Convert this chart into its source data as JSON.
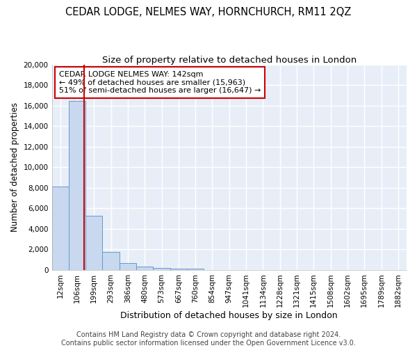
{
  "title": "CEDAR LODGE, NELMES WAY, HORNCHURCH, RM11 2QZ",
  "subtitle": "Size of property relative to detached houses in London",
  "xlabel": "Distribution of detached houses by size in London",
  "ylabel": "Number of detached properties",
  "bar_labels": [
    "12sqm",
    "106sqm",
    "199sqm",
    "293sqm",
    "386sqm",
    "480sqm",
    "573sqm",
    "667sqm",
    "760sqm",
    "854sqm",
    "947sqm",
    "1041sqm",
    "1134sqm",
    "1228sqm",
    "1321sqm",
    "1415sqm",
    "1508sqm",
    "1602sqm",
    "1695sqm",
    "1789sqm",
    "1882sqm"
  ],
  "bar_values": [
    8100,
    16500,
    5300,
    1750,
    700,
    320,
    200,
    150,
    100,
    0,
    0,
    0,
    0,
    0,
    0,
    0,
    0,
    0,
    0,
    0,
    0
  ],
  "bar_color": "#c8d8ef",
  "bar_edge_color": "#6699cc",
  "vline_color": "#cc0000",
  "vline_x": 1.43,
  "annotation_text": "CEDAR LODGE NELMES WAY: 142sqm\n← 49% of detached houses are smaller (15,963)\n51% of semi-detached houses are larger (16,647) →",
  "annotation_box_color": "#ffffff",
  "annotation_box_edge": "#cc0000",
  "ylim": [
    0,
    20000
  ],
  "yticks": [
    0,
    2000,
    4000,
    6000,
    8000,
    10000,
    12000,
    14000,
    16000,
    18000,
    20000
  ],
  "footnote": "Contains HM Land Registry data © Crown copyright and database right 2024.\nContains public sector information licensed under the Open Government Licence v3.0.",
  "bg_color": "#ffffff",
  "plot_bg_color": "#e8eef8",
  "grid_color": "#ffffff",
  "title_fontsize": 10.5,
  "subtitle_fontsize": 9.5,
  "xlabel_fontsize": 9,
  "ylabel_fontsize": 8.5,
  "tick_fontsize": 7.5,
  "footnote_fontsize": 7
}
